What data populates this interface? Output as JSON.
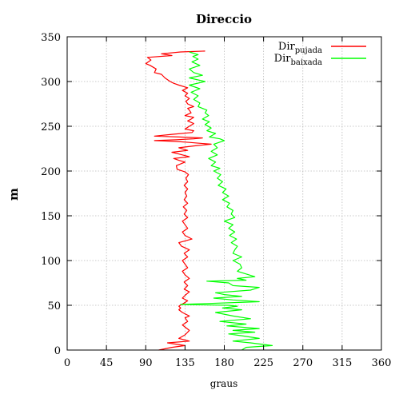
{
  "chart_data": {
    "type": "line",
    "title": "Direccio",
    "xlabel": "graus",
    "ylabel": "m",
    "xlim": [
      0,
      360
    ],
    "ylim": [
      0,
      350
    ],
    "xticks": [
      0,
      45,
      90,
      135,
      180,
      225,
      270,
      315,
      360
    ],
    "yticks": [
      0,
      50,
      100,
      150,
      200,
      250,
      300,
      350
    ],
    "grid": true,
    "legend_position": "top-right",
    "series": [
      {
        "name": "Dir",
        "name_sub": "pujada",
        "color": "#ff0000",
        "points": [
          [
            105,
            0
          ],
          [
            120,
            3
          ],
          [
            135,
            5
          ],
          [
            115,
            8
          ],
          [
            140,
            10
          ],
          [
            128,
            13
          ],
          [
            135,
            17
          ],
          [
            140,
            22
          ],
          [
            132,
            28
          ],
          [
            138,
            32
          ],
          [
            135,
            36
          ],
          [
            140,
            38
          ],
          [
            132,
            42
          ],
          [
            128,
            45
          ],
          [
            130,
            47
          ],
          [
            128,
            49
          ],
          [
            133,
            52
          ],
          [
            138,
            55
          ],
          [
            132,
            58
          ],
          [
            136,
            62
          ],
          [
            140,
            65
          ],
          [
            134,
            68
          ],
          [
            138,
            72
          ],
          [
            134,
            76
          ],
          [
            140,
            80
          ],
          [
            135,
            84
          ],
          [
            132,
            88
          ],
          [
            138,
            92
          ],
          [
            135,
            96
          ],
          [
            132,
            100
          ],
          [
            138,
            104
          ],
          [
            134,
            108
          ],
          [
            140,
            112
          ],
          [
            131,
            116
          ],
          [
            128,
            120
          ],
          [
            143,
            124
          ],
          [
            135,
            128
          ],
          [
            132,
            132
          ],
          [
            138,
            136
          ],
          [
            135,
            140
          ],
          [
            132,
            144
          ],
          [
            138,
            148
          ],
          [
            134,
            152
          ],
          [
            137,
            156
          ],
          [
            133,
            160
          ],
          [
            138,
            164
          ],
          [
            134,
            168
          ],
          [
            137,
            172
          ],
          [
            135,
            176
          ],
          [
            138,
            180
          ],
          [
            134,
            184
          ],
          [
            138,
            188
          ],
          [
            136,
            192
          ],
          [
            139,
            196
          ],
          [
            135,
            199
          ],
          [
            126,
            202
          ],
          [
            125,
            206
          ],
          [
            135,
            210
          ],
          [
            128,
            212
          ],
          [
            122,
            214
          ],
          [
            140,
            216
          ],
          [
            128,
            219
          ],
          [
            120,
            221
          ],
          [
            138,
            223
          ],
          [
            128,
            226
          ],
          [
            145,
            228
          ],
          [
            165,
            230
          ],
          [
            140,
            232
          ],
          [
            125,
            233
          ],
          [
            100,
            234
          ],
          [
            125,
            235
          ],
          [
            145,
            236
          ],
          [
            155,
            237
          ],
          [
            128,
            238
          ],
          [
            100,
            239
          ],
          [
            120,
            241
          ],
          [
            143,
            243
          ],
          [
            145,
            245
          ],
          [
            135,
            247
          ],
          [
            140,
            250
          ],
          [
            145,
            253
          ],
          [
            138,
            256
          ],
          [
            142,
            258
          ],
          [
            145,
            260
          ],
          [
            135,
            262
          ],
          [
            142,
            265
          ],
          [
            140,
            268
          ],
          [
            138,
            270
          ],
          [
            145,
            272
          ],
          [
            138,
            275
          ],
          [
            136,
            278
          ],
          [
            140,
            281
          ],
          [
            135,
            284
          ],
          [
            138,
            287
          ],
          [
            132,
            290
          ],
          [
            138,
            293
          ],
          [
            128,
            296
          ],
          [
            122,
            298
          ],
          [
            118,
            300
          ],
          [
            112,
            304
          ],
          [
            108,
            308
          ],
          [
            100,
            310
          ],
          [
            102,
            314
          ],
          [
            95,
            318
          ],
          [
            90,
            320
          ],
          [
            96,
            324
          ],
          [
            92,
            327
          ],
          [
            120,
            329
          ],
          [
            108,
            331
          ],
          [
            130,
            333
          ],
          [
            158,
            334
          ]
        ]
      },
      {
        "name": "Dir",
        "name_sub": "baixada",
        "color": "#00ff00",
        "points": [
          [
            200,
            0
          ],
          [
            205,
            3
          ],
          [
            235,
            5
          ],
          [
            210,
            8
          ],
          [
            190,
            10
          ],
          [
            220,
            13
          ],
          [
            200,
            16
          ],
          [
            185,
            18
          ],
          [
            215,
            20
          ],
          [
            190,
            22
          ],
          [
            220,
            24
          ],
          [
            183,
            27
          ],
          [
            205,
            29
          ],
          [
            175,
            32
          ],
          [
            210,
            35
          ],
          [
            190,
            38
          ],
          [
            170,
            42
          ],
          [
            200,
            45
          ],
          [
            178,
            47
          ],
          [
            195,
            49
          ],
          [
            185,
            50
          ],
          [
            130,
            51
          ],
          [
            160,
            52
          ],
          [
            220,
            54
          ],
          [
            190,
            56
          ],
          [
            168,
            58
          ],
          [
            200,
            60
          ],
          [
            180,
            62
          ],
          [
            170,
            64
          ],
          [
            210,
            67
          ],
          [
            220,
            70
          ],
          [
            190,
            72
          ],
          [
            185,
            75
          ],
          [
            160,
            77
          ],
          [
            205,
            78
          ],
          [
            195,
            80
          ],
          [
            215,
            82
          ],
          [
            205,
            85
          ],
          [
            195,
            88
          ],
          [
            200,
            92
          ],
          [
            198,
            96
          ],
          [
            190,
            100
          ],
          [
            200,
            104
          ],
          [
            190,
            108
          ],
          [
            192,
            112
          ],
          [
            195,
            116
          ],
          [
            188,
            120
          ],
          [
            194,
            124
          ],
          [
            186,
            128
          ],
          [
            192,
            132
          ],
          [
            185,
            136
          ],
          [
            190,
            140
          ],
          [
            180,
            144
          ],
          [
            192,
            148
          ],
          [
            188,
            152
          ],
          [
            190,
            156
          ],
          [
            183,
            160
          ],
          [
            186,
            164
          ],
          [
            178,
            168
          ],
          [
            185,
            172
          ],
          [
            178,
            176
          ],
          [
            182,
            180
          ],
          [
            173,
            184
          ],
          [
            178,
            188
          ],
          [
            172,
            192
          ],
          [
            176,
            196
          ],
          [
            168,
            200
          ],
          [
            175,
            203
          ],
          [
            165,
            206
          ],
          [
            170,
            210
          ],
          [
            162,
            214
          ],
          [
            172,
            218
          ],
          [
            165,
            222
          ],
          [
            172,
            226
          ],
          [
            168,
            230
          ],
          [
            180,
            234
          ],
          [
            175,
            236
          ],
          [
            163,
            238
          ],
          [
            170,
            242
          ],
          [
            160,
            245
          ],
          [
            165,
            248
          ],
          [
            158,
            252
          ],
          [
            163,
            255
          ],
          [
            155,
            258
          ],
          [
            162,
            262
          ],
          [
            158,
            265
          ],
          [
            160,
            268
          ],
          [
            150,
            272
          ],
          [
            152,
            276
          ],
          [
            145,
            280
          ],
          [
            150,
            284
          ],
          [
            142,
            288
          ],
          [
            152,
            292
          ],
          [
            140,
            296
          ],
          [
            158,
            300
          ],
          [
            140,
            304
          ],
          [
            155,
            307
          ],
          [
            145,
            310
          ],
          [
            140,
            314
          ],
          [
            152,
            318
          ],
          [
            143,
            322
          ],
          [
            150,
            325
          ],
          [
            144,
            328
          ],
          [
            150,
            330
          ],
          [
            140,
            333
          ]
        ]
      }
    ]
  }
}
